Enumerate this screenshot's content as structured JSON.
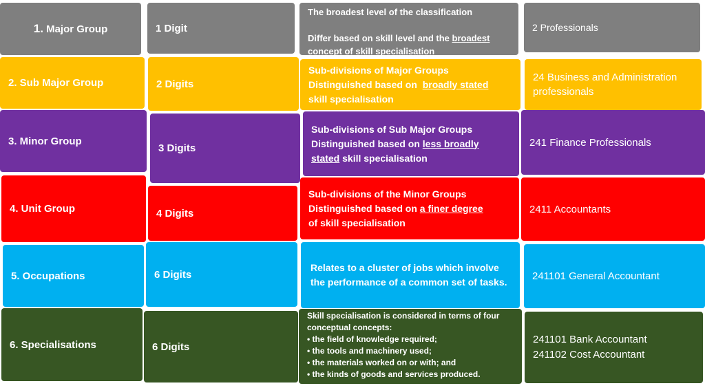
{
  "rows": [
    {
      "level": "1. Major Group",
      "level_prefix": "1.",
      "level_name": "Major Group",
      "digits": "1 Digit",
      "desc_line1": "The broadest level of the classification",
      "desc_line2_pre": "Differ based on skill level and the ",
      "desc_line2_ul": "broadest",
      "desc_line2_post": "concept of skill specialisation",
      "example": "2 Professionals",
      "color": "#7f7f7f"
    },
    {
      "level": "2. Sub Major Group",
      "digits": "2 Digits",
      "desc_line1": "Sub-divisions of Major Groups",
      "desc_line2_pre": "Distinguished based on ",
      "desc_line2_ul": "broadly stated",
      "desc_line2_post": "skill specialisation",
      "example": "24 Business and Administration professionals",
      "color": "#ffc000"
    },
    {
      "level": "3. Minor Group",
      "digits": "3 Digits",
      "desc_line1": "Sub-divisions of Sub Major Groups",
      "desc_line2_pre": "Distinguished based on ",
      "desc_line2_ul": "less broadly",
      "desc_line2_ul2": "stated",
      "desc_line2_post": " skill specialisation",
      "example": "241 Finance Professionals",
      "color": "#7030a0"
    },
    {
      "level": "4. Unit Group",
      "digits": "4 Digits",
      "desc_line1": "Sub-divisions of the Minor Groups",
      "desc_line2_pre": "Distinguished based on ",
      "desc_line2_ul": "a finer degree",
      "desc_line2_post": "of skill specialisation",
      "example": "2411 Accountants",
      "color": "#ff0000"
    },
    {
      "level": "5. Occupations",
      "digits": "6 Digits",
      "desc": "Relates to a cluster of jobs which involve the performance of a common set of tasks.",
      "example": "241101 General Accountant",
      "color": "#00b0f0"
    },
    {
      "level": "6. Specialisations",
      "digits": "6 Digits",
      "desc_intro": "Skill specialisation is considered in terms of four conceptual concepts:",
      "desc_bullets": [
        "the field of knowledge required;",
        "the tools and machinery used;",
        "the materials worked on or with; and",
        "the kinds of goods and services produced."
      ],
      "example_line1": "241101 Bank Accountant",
      "example_line2": "241102 Cost Accountant",
      "color": "#375623"
    }
  ]
}
